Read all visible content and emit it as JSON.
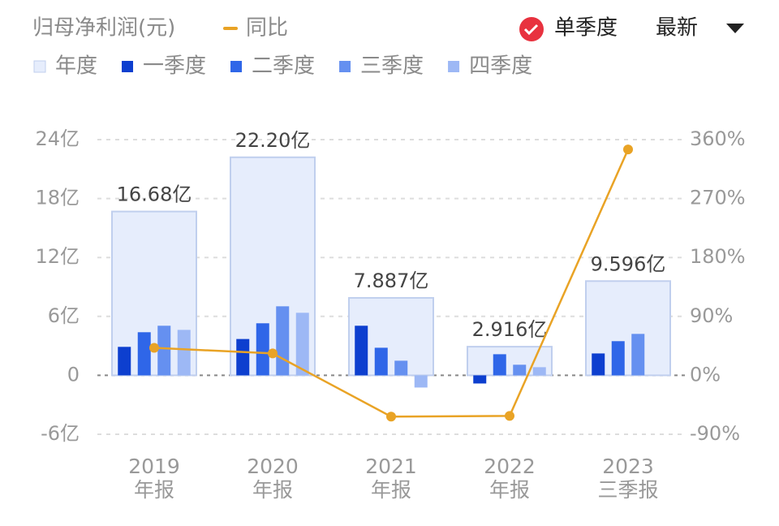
{
  "chart_data": {
    "type": "bar",
    "title": "归母净利润(元)",
    "categories": [
      [
        "2019",
        "年报"
      ],
      [
        "2020",
        "年报"
      ],
      [
        "2021",
        "年报"
      ],
      [
        "2022",
        "年报"
      ],
      [
        "2023",
        "三季报"
      ]
    ],
    "series": [
      {
        "name": "年度",
        "color": "#e6edfc",
        "values": [
          16.68,
          22.2,
          7.887,
          2.916,
          9.596
        ],
        "value_labels": [
          "16.68亿",
          "22.20亿",
          "7.887亿",
          "2.916亿",
          "9.596亿"
        ]
      },
      {
        "name": "一季度",
        "color": "#0d3fcf",
        "values": [
          2.9,
          3.7,
          5.05,
          -0.83,
          2.23
        ]
      },
      {
        "name": "二季度",
        "color": "#2f66e8",
        "values": [
          4.39,
          5.3,
          2.81,
          2.15,
          3.48
        ]
      },
      {
        "name": "三季度",
        "color": "#6590f0",
        "values": [
          5.05,
          7.03,
          1.49,
          1.08,
          4.22
        ]
      },
      {
        "name": "四季度",
        "color": "#9db8f5",
        "values": [
          4.63,
          6.37,
          -1.24,
          0.83,
          null
        ]
      },
      {
        "name": "同比",
        "type": "line",
        "axis": "y2",
        "color": "#e9a325",
        "values": [
          42,
          33.5,
          -63,
          -62,
          345
        ]
      }
    ],
    "ylim": [
      -6,
      24
    ],
    "yticks": [
      {
        "value": -6,
        "label": "-6亿"
      },
      0,
      {
        "value": 6,
        "label": "6亿"
      },
      {
        "value": 12,
        "label": "12亿"
      },
      {
        "value": 18,
        "label": "18亿"
      },
      {
        "value": 24,
        "label": "24亿"
      }
    ],
    "y2lim": [
      -90,
      360
    ],
    "y2ticks": [
      {
        "value": -90,
        "label": "-90%"
      },
      {
        "value": 0,
        "label": "0%"
      },
      {
        "value": 90,
        "label": "90%"
      },
      {
        "value": 180,
        "label": "180%"
      },
      {
        "value": 270,
        "label": "270%"
      },
      {
        "value": 360,
        "label": "360%"
      }
    ],
    "grid": true
  },
  "controls": {
    "checkbox": "单季度",
    "dropdown": "最新"
  }
}
